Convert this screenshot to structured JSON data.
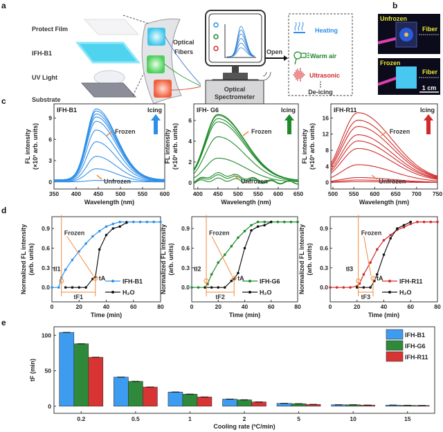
{
  "panels": {
    "a": "a",
    "b": "b",
    "c": "c",
    "d": "d",
    "e": "e"
  },
  "colors": {
    "b1": "#2f8fe8",
    "g6": "#1e8a2a",
    "r11": "#d02a2a",
    "orange": "#f08a3c",
    "h2o": "#111111"
  },
  "schematic": {
    "layers": [
      "Protect Film",
      "IFH-B1",
      "UV Light",
      "Substrate"
    ],
    "optical_fibers": [
      "Optical",
      "Fibers"
    ],
    "spectrometer": [
      "Optical",
      "Spectrometer"
    ],
    "open_label": "Open",
    "actions": [
      {
        "label": "Heating",
        "icon": "heating-icon",
        "color": "#2f8fe8"
      },
      {
        "label": "Warm air",
        "icon": "hair-dryer-icon",
        "color": "#1e8a2a"
      },
      {
        "label": "Ultrasonic",
        "icon": "ultrasonic-icon",
        "color": "#d02a2a"
      }
    ],
    "ellipsis": "⋮",
    "deicing": "De-icing"
  },
  "photos": {
    "top": {
      "state": "Unfrozen",
      "fiber": "Fiber"
    },
    "bottom": {
      "state": "Frozen",
      "fiber": "Fiber",
      "scale": "1 cm"
    }
  },
  "chart_data": [
    {
      "id": "c1",
      "type": "line",
      "title": "IFH-B1",
      "color": "#2f8fe8",
      "xlabel": "Wavelength (nm)",
      "ylabel": [
        "FL intensity",
        "(×10³ arb. units)"
      ],
      "xlim": [
        350,
        600
      ],
      "ylim": [
        -1,
        11
      ],
      "xticks": [
        350,
        400,
        450,
        500,
        550,
        600
      ],
      "yticks": [
        0,
        3,
        6,
        9
      ],
      "peak_wavelength": 445,
      "peak_intensities": [
        0.2,
        1.8,
        3.5,
        5.5,
        7.1,
        8.3,
        8.9,
        9.3,
        9.7,
        10.0
      ],
      "annotations": {
        "icing": "Icing",
        "frozen": "Frozen",
        "unfrozen": "Unfrozen"
      }
    },
    {
      "id": "c2",
      "type": "line",
      "title": "IFH- G6",
      "color": "#1e8a2a",
      "xlabel": "Wavelength (nm)",
      "ylabel": [
        "FL intensity",
        "(×10³ arb. units)"
      ],
      "xlim": [
        390,
        650
      ],
      "ylim": [
        -0.6,
        7.6
      ],
      "xticks": [
        400,
        450,
        500,
        550,
        600,
        650
      ],
      "yticks": [
        0,
        2,
        4,
        6
      ],
      "peak_wavelength": 450,
      "peak_intensities": [
        0.3,
        0.6,
        0.8,
        2.3,
        4.3,
        5.7,
        6.0,
        6.3,
        6.4
      ],
      "annotations": {
        "icing": "Icing",
        "frozen": "Frozen",
        "unfrozen": "Unfrozen"
      }
    },
    {
      "id": "c3",
      "type": "line",
      "title": "IFH-R11",
      "color": "#d02a2a",
      "xlabel": "Wavelength (nm)",
      "ylabel": [
        "FL intensity",
        "(×10³ arb. units)"
      ],
      "xlim": [
        495,
        750
      ],
      "ylim": [
        -1.6,
        19.5
      ],
      "xticks": [
        500,
        550,
        600,
        650,
        700,
        750
      ],
      "yticks": [
        0,
        4,
        8,
        12,
        16
      ],
      "peak_wavelength": 560,
      "peak_intensities": [
        0.2,
        0.6,
        1.2,
        4.3,
        8.2,
        10.0,
        11.5,
        13.5,
        15.0,
        16.8
      ],
      "annotations": {
        "icing": "Icing",
        "frozen": "Frozen",
        "unfrozen": "Unfrozen"
      }
    },
    {
      "id": "d1",
      "type": "line",
      "xlabel": "Time (min)",
      "ylabel": [
        "Normalized FL intensity",
        "(arb. units)"
      ],
      "xlim": [
        0,
        80
      ],
      "ylim": [
        -0.22,
        1.08
      ],
      "xticks": [
        0,
        20,
        40,
        60,
        80
      ],
      "yticks": [
        "0.0",
        "0.3",
        "0.6",
        "0.9"
      ],
      "series": [
        {
          "name": "IFH-B1",
          "color": "#2f8fe8",
          "x": [
            0,
            5,
            7,
            10,
            15,
            20,
            25,
            30,
            35,
            40,
            45,
            50,
            55,
            60,
            65,
            70,
            75,
            80
          ],
          "y": [
            0,
            0,
            0.15,
            0.27,
            0.42,
            0.55,
            0.67,
            0.78,
            0.86,
            0.93,
            0.97,
            1,
            1,
            1,
            1,
            1,
            1,
            1
          ]
        },
        {
          "name": "H₂O",
          "color": "#111111",
          "x": [
            10,
            15,
            20,
            25,
            30,
            32,
            35,
            40,
            45,
            50,
            55
          ],
          "y": [
            0,
            0,
            0,
            0,
            0.13,
            0.16,
            0.58,
            0.8,
            0.9,
            0.93,
            0.99
          ]
        }
      ],
      "annotations": {
        "frozen": "Frozen",
        "ti": "tI1",
        "ta": "tA",
        "tf": "tF1",
        "ti_time": 7,
        "ta_time": 32
      }
    },
    {
      "id": "d2",
      "type": "line",
      "xlabel": "Time (min)",
      "ylabel": [
        "Normalized FL intensity",
        "(arb. units)"
      ],
      "xlim": [
        0,
        80
      ],
      "ylim": [
        -0.22,
        1.08
      ],
      "xticks": [
        0,
        20,
        40,
        60,
        80
      ],
      "yticks": [
        "0.0",
        "0.3",
        "0.6",
        "0.9"
      ],
      "series": [
        {
          "name": "IFH-G6",
          "color": "#1e8a2a",
          "x": [
            0,
            5,
            10,
            12,
            15,
            20,
            25,
            30,
            35,
            40,
            45,
            50,
            55,
            60,
            65,
            70,
            75,
            80
          ],
          "y": [
            0,
            0,
            0,
            0.05,
            0.2,
            0.38,
            0.5,
            0.63,
            0.76,
            0.86,
            0.95,
            1,
            1,
            1,
            1,
            1,
            1,
            1
          ]
        },
        {
          "name": "H₂O",
          "color": "#111111",
          "x": [
            10,
            15,
            20,
            25,
            30,
            32,
            35,
            40,
            45,
            50,
            55,
            60
          ],
          "y": [
            0,
            0,
            0,
            0,
            0.1,
            0.13,
            0.22,
            0.6,
            0.87,
            0.93,
            0.95,
            1
          ]
        }
      ],
      "annotations": {
        "frozen": "Frozen",
        "ti": "tI2",
        "ta": "tA",
        "tf": "tF2",
        "ti_time": 11,
        "ta_time": 32
      }
    },
    {
      "id": "d3",
      "type": "line",
      "xlabel": "Time (min)",
      "ylabel": [
        "Normalized FL intensity",
        "(arb. units)"
      ],
      "xlim": [
        0,
        80
      ],
      "ylim": [
        -0.22,
        1.08
      ],
      "xticks": [
        0,
        20,
        40,
        60,
        80
      ],
      "yticks": [
        "0.0",
        "0.3",
        "0.6",
        "0.9"
      ],
      "series": [
        {
          "name": "IFH-R11",
          "color": "#d02a2a",
          "x": [
            0,
            5,
            10,
            15,
            20,
            22,
            25,
            30,
            35,
            40,
            45,
            50,
            55,
            60,
            65,
            70,
            75,
            80
          ],
          "y": [
            0,
            0,
            0,
            0,
            0.02,
            0.06,
            0.2,
            0.38,
            0.58,
            0.72,
            0.8,
            0.88,
            0.92,
            0.97,
            1,
            1,
            1,
            1
          ]
        },
        {
          "name": "H₂O",
          "color": "#111111",
          "x": [
            20,
            25,
            30,
            33,
            35,
            40,
            45,
            50,
            55,
            60
          ],
          "y": [
            0,
            0,
            0,
            0.1,
            0.2,
            0.5,
            0.75,
            0.9,
            0.95,
            1
          ]
        }
      ],
      "annotations": {
        "frozen": "Frozen",
        "ti": "tI3",
        "ta": "tA",
        "tf": "tF3",
        "ti_time": 21,
        "ta_time": 32
      }
    },
    {
      "id": "e",
      "type": "bar",
      "xlabel": "Cooling rate (ºC/min)",
      "ylabel": "tF (min)",
      "categories": [
        "0.2",
        "0.5",
        "1",
        "2",
        "5",
        "10",
        "15"
      ],
      "ylim": [
        -10,
        112
      ],
      "yticks": [
        0,
        50,
        100
      ],
      "legend": "top-right",
      "series": [
        {
          "name": "IFH-B1",
          "color": "#3d9cf0",
          "values": [
            104,
            41,
            20,
            10,
            4,
            2,
            1.5
          ]
        },
        {
          "name": "IFH-G6",
          "color": "#2e8a3a",
          "values": [
            88,
            35,
            17,
            9,
            3.5,
            2,
            1.2
          ]
        },
        {
          "name": "IFH-R11",
          "color": "#d83434",
          "values": [
            69,
            27,
            13,
            6,
            2.5,
            1.5,
            1
          ]
        }
      ]
    }
  ]
}
